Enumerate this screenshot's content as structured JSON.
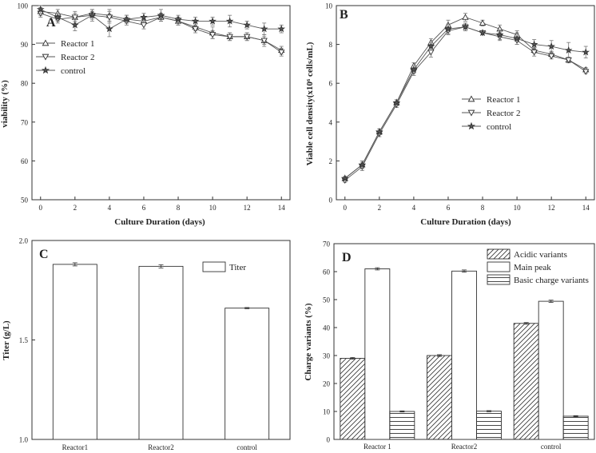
{
  "chart_data": [
    {
      "panel": "A",
      "type": "line",
      "xlabel": "Culture Duration (days)",
      "ylabel": "viability (%)",
      "xlim": [
        -0.5,
        14.5
      ],
      "ylim": [
        50,
        100
      ],
      "xticks": [
        0,
        2,
        4,
        6,
        8,
        10,
        12,
        14
      ],
      "yticks": [
        50,
        60,
        70,
        80,
        90,
        100
      ],
      "legend_position": "upper-left",
      "x": [
        0,
        1,
        2,
        3,
        4,
        5,
        6,
        7,
        8,
        9,
        10,
        11,
        12,
        13,
        14
      ],
      "series": [
        {
          "name": "Reactor 1",
          "marker": "triangle-up",
          "values": [
            98.5,
            98,
            97,
            98,
            97.5,
            96.5,
            96,
            97,
            96,
            94.5,
            93,
            92,
            92,
            91,
            88.5
          ],
          "errors": [
            1,
            1,
            1,
            1,
            1.5,
            1,
            1,
            1,
            1,
            1,
            1.5,
            1,
            1,
            1,
            1
          ]
        },
        {
          "name": "Reactor 2",
          "marker": "triangle-down",
          "values": [
            98,
            96.5,
            97,
            97.5,
            97,
            96,
            95,
            97,
            96,
            94,
            92.5,
            92,
            92,
            91,
            88
          ],
          "errors": [
            1,
            1,
            1.5,
            1.5,
            1.5,
            1,
            1,
            1,
            1,
            1,
            1,
            1,
            1,
            1.5,
            1
          ]
        },
        {
          "name": "control",
          "marker": "star",
          "values": [
            99,
            97,
            95,
            97.5,
            94,
            96.5,
            97,
            97.5,
            96.5,
            96,
            96,
            96,
            95,
            94,
            94
          ],
          "errors": [
            1,
            1,
            1.5,
            1,
            2,
            1,
            1,
            1.5,
            1,
            1,
            1,
            1.5,
            1,
            1.5,
            1
          ]
        }
      ]
    },
    {
      "panel": "B",
      "type": "line",
      "xlabel": "Culture Duration (days)",
      "ylabel": "Viable cell density(x10⁶ cells/mL)",
      "xlim": [
        -0.5,
        14.5
      ],
      "ylim": [
        0,
        10
      ],
      "xticks": [
        0,
        2,
        4,
        6,
        8,
        10,
        12,
        14
      ],
      "yticks": [
        0,
        2,
        4,
        6,
        8,
        10
      ],
      "legend_position": "lower-right",
      "x": [
        0,
        1,
        2,
        3,
        4,
        5,
        6,
        7,
        8,
        9,
        10,
        11,
        12,
        13,
        14
      ],
      "series": [
        {
          "name": "Reactor 1",
          "marker": "triangle-up",
          "values": [
            1.1,
            1.8,
            3.5,
            5.0,
            6.9,
            8.1,
            9.0,
            9.4,
            9.1,
            8.8,
            8.5,
            7.7,
            7.5,
            7.2,
            6.7
          ],
          "errors": [
            0.1,
            0.2,
            0.15,
            0.15,
            0.15,
            0.2,
            0.25,
            0.2,
            0.15,
            0.2,
            0.2,
            0.15,
            0.15,
            0.15,
            0.1
          ]
        },
        {
          "name": "Reactor 2",
          "marker": "triangle-down",
          "values": [
            1.0,
            1.7,
            3.4,
            4.9,
            6.6,
            7.6,
            8.7,
            8.9,
            8.6,
            8.4,
            8.2,
            7.6,
            7.4,
            7.2,
            6.6
          ],
          "errors": [
            0.1,
            0.2,
            0.15,
            0.15,
            0.2,
            0.25,
            0.2,
            0.2,
            0.1,
            0.2,
            0.2,
            0.2,
            0.15,
            0.1,
            0.1
          ]
        },
        {
          "name": "control",
          "marker": "star",
          "values": [
            1.1,
            1.8,
            3.5,
            5.0,
            6.7,
            7.9,
            8.8,
            8.9,
            8.6,
            8.5,
            8.3,
            8.0,
            7.9,
            7.7,
            7.6
          ],
          "errors": [
            0.1,
            0.2,
            0.15,
            0.15,
            0.2,
            0.2,
            0.25,
            0.2,
            0.1,
            0.25,
            0.3,
            0.25,
            0.3,
            0.4,
            0.3
          ]
        }
      ]
    },
    {
      "panel": "C",
      "type": "bar",
      "xlabel": "",
      "ylabel": "Titer (g/L)",
      "ylim": [
        1.0,
        2.0
      ],
      "yticks": [
        1.0,
        1.5,
        2.0
      ],
      "ytick_labels": [
        "1.0",
        "1.5",
        "2.0"
      ],
      "legend_position": "top-right",
      "categories": [
        "Reactor1",
        "Reactor2",
        "control"
      ],
      "series": [
        {
          "name": "Titer",
          "pattern": "none",
          "values": [
            1.88,
            1.87,
            1.66
          ],
          "errors": [
            0.008,
            0.008,
            0.003
          ]
        }
      ]
    },
    {
      "panel": "D",
      "type": "bar",
      "xlabel": "",
      "ylabel": "Charge variants (%)",
      "ylim": [
        0,
        70
      ],
      "yticks": [
        0,
        10,
        20,
        30,
        40,
        50,
        60,
        70
      ],
      "legend_position": "top-right",
      "categories": [
        "Reactor 1",
        "Reactor2",
        "control"
      ],
      "series": [
        {
          "name": "Acidic variants",
          "pattern": "diagonal",
          "values": [
            29,
            30,
            41.5
          ],
          "errors": [
            0.3,
            0.3,
            0.3
          ]
        },
        {
          "name": "Main peak",
          "pattern": "none",
          "values": [
            61,
            60.2,
            49.4
          ],
          "errors": [
            0.4,
            0.4,
            0.4
          ]
        },
        {
          "name": "Basic charge variants",
          "pattern": "horizontal",
          "values": [
            10,
            10.1,
            8.3
          ],
          "errors": [
            0.2,
            0.2,
            0.2
          ]
        }
      ]
    }
  ]
}
